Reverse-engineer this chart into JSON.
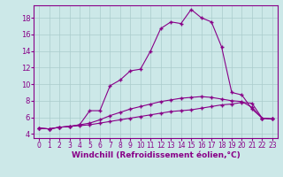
{
  "background_color": "#cce8e8",
  "grid_color": "#aacccc",
  "line_color": "#880088",
  "xlabel": "Windchill (Refroidissement éolien,°C)",
  "xlabel_fontsize": 6.5,
  "xtick_fontsize": 5.5,
  "ytick_fontsize": 6.0,
  "ylim": [
    3.5,
    19.5
  ],
  "xlim": [
    -0.5,
    23.5
  ],
  "yticks": [
    4,
    6,
    8,
    10,
    12,
    14,
    16,
    18
  ],
  "xticks": [
    0,
    1,
    2,
    3,
    4,
    5,
    6,
    7,
    8,
    9,
    10,
    11,
    12,
    13,
    14,
    15,
    16,
    17,
    18,
    19,
    20,
    21,
    22,
    23
  ],
  "series": [
    {
      "x": [
        0,
        1,
        2,
        3,
        4,
        5,
        6,
        7,
        8,
        9,
        10,
        11,
        12,
        13,
        14,
        15,
        16,
        17,
        18,
        19,
        20,
        21,
        22,
        23
      ],
      "y": [
        4.7,
        4.6,
        4.8,
        4.9,
        5.0,
        5.1,
        5.3,
        5.5,
        5.7,
        5.9,
        6.1,
        6.3,
        6.5,
        6.7,
        6.8,
        6.9,
        7.1,
        7.3,
        7.5,
        7.6,
        7.8,
        7.7,
        5.9,
        5.8
      ]
    },
    {
      "x": [
        0,
        1,
        2,
        3,
        4,
        5,
        6,
        7,
        8,
        9,
        10,
        11,
        12,
        13,
        14,
        15,
        16,
        17,
        18,
        19,
        20,
        21,
        22,
        23
      ],
      "y": [
        4.7,
        4.6,
        4.8,
        4.9,
        5.1,
        5.3,
        5.7,
        6.2,
        6.6,
        7.0,
        7.3,
        7.6,
        7.9,
        8.1,
        8.3,
        8.4,
        8.5,
        8.4,
        8.2,
        8.0,
        7.9,
        7.2,
        5.9,
        5.8
      ]
    },
    {
      "x": [
        0,
        1,
        2,
        3,
        4,
        5,
        6,
        7,
        8,
        9,
        10,
        11,
        12,
        13,
        14,
        15,
        16,
        17,
        18,
        19,
        20,
        21,
        22,
        23
      ],
      "y": [
        4.7,
        4.6,
        4.8,
        4.9,
        5.1,
        6.8,
        6.8,
        9.8,
        10.5,
        11.6,
        11.8,
        14.0,
        16.7,
        17.5,
        17.3,
        19.0,
        18.0,
        17.5,
        14.5,
        9.0,
        8.7,
        7.0,
        5.9,
        5.8
      ]
    }
  ]
}
